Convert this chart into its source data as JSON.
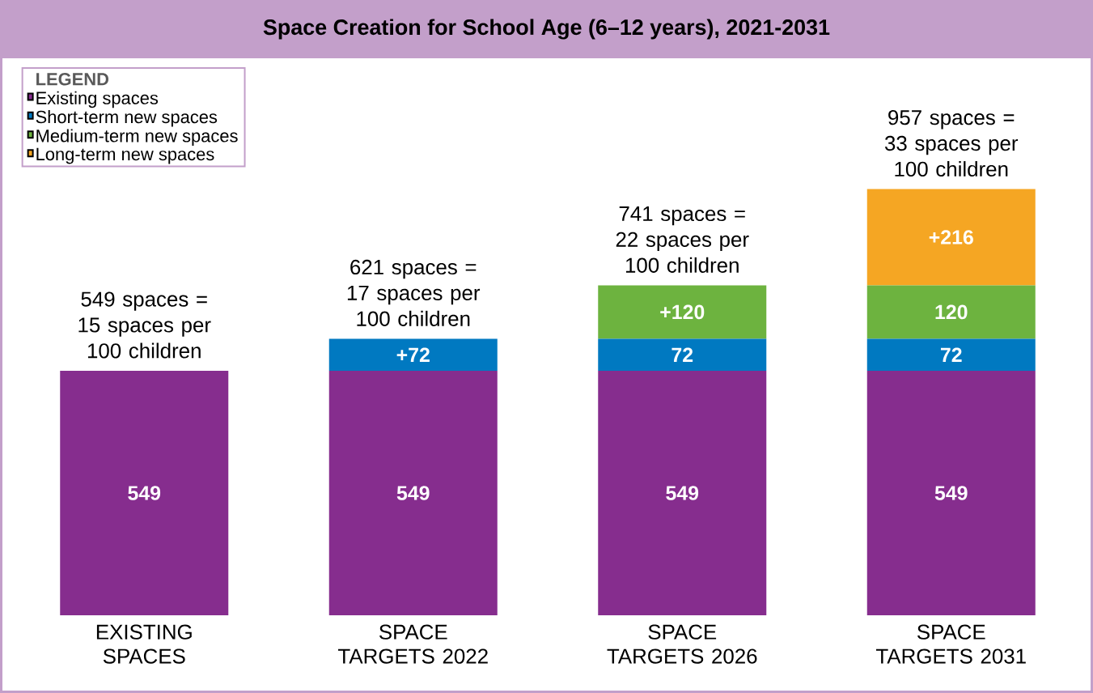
{
  "chart_data": {
    "type": "bar",
    "stacked": true,
    "title": "Space Creation for School Age (6–12 years), 2021-2031",
    "legend_title": "LEGEND",
    "legend": "top left",
    "categories": [
      "EXISTING SPACES",
      "SPACE TARGETS 2022",
      "SPACE TARGETS 2026",
      "SPACE TARGETS 2031"
    ],
    "series": [
      {
        "name": "Existing spaces",
        "color": "#862d8e",
        "values": [
          549,
          549,
          549,
          549
        ],
        "value_labels": [
          "549",
          "549",
          "549",
          "549"
        ]
      },
      {
        "name": "Short-term new spaces",
        "color": "#0079c1",
        "values": [
          null,
          72,
          72,
          72
        ],
        "value_labels": [
          null,
          "+72",
          "72",
          "72"
        ]
      },
      {
        "name": "Medium-term new spaces",
        "color": "#6db33f",
        "values": [
          null,
          null,
          120,
          120
        ],
        "value_labels": [
          null,
          null,
          "+120",
          "120"
        ]
      },
      {
        "name": "Long-term new spaces",
        "color": "#f5a623",
        "values": [
          null,
          null,
          null,
          216
        ],
        "value_labels": [
          null,
          null,
          null,
          "+216"
        ]
      }
    ],
    "totals": [
      "549 spaces = 15 spaces per 100 children",
      "621 spaces = 17 spaces per 100 children",
      "741 spaces = 22 spaces per 100 children",
      "957 spaces = 33 spaces per 100 children"
    ]
  }
}
